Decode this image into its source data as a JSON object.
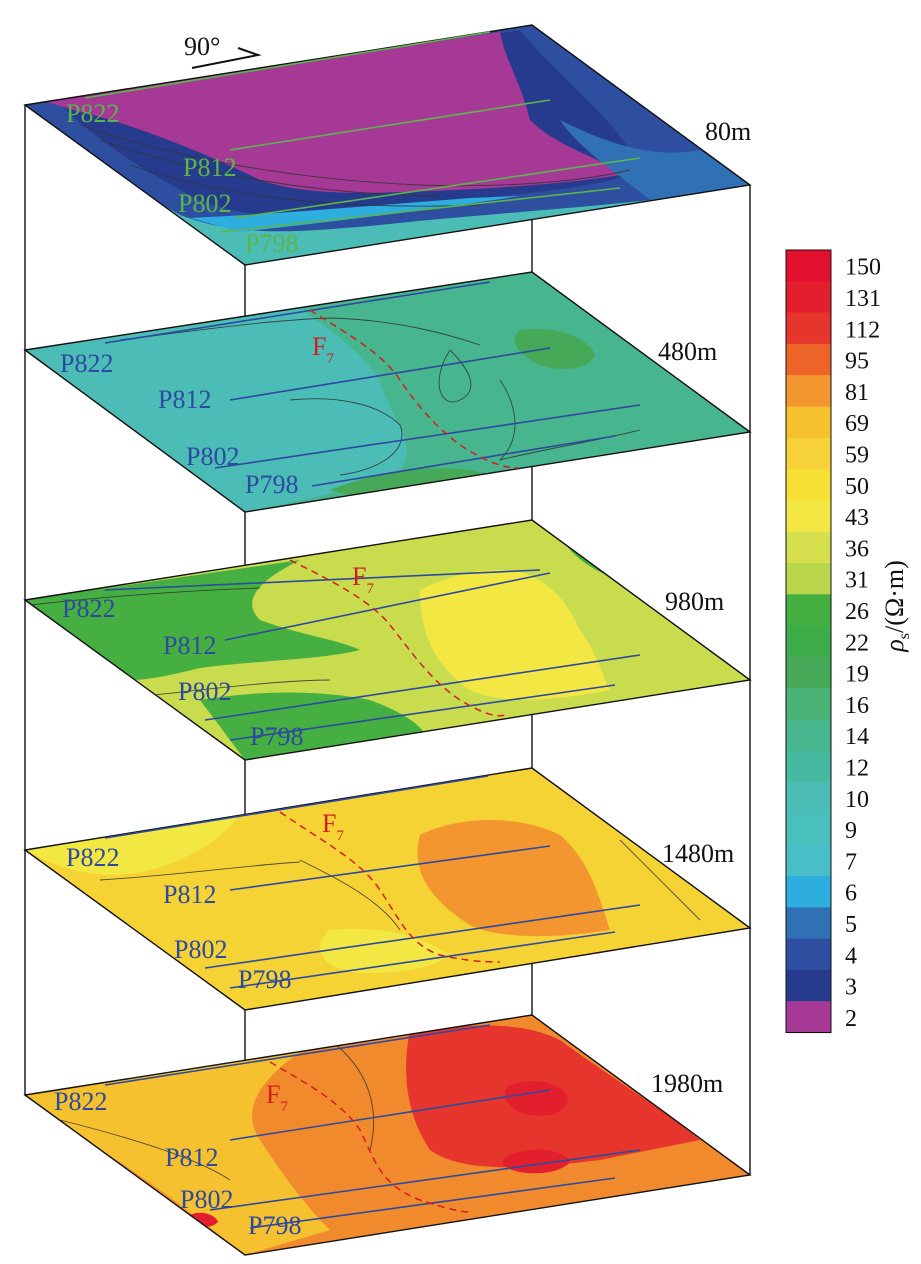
{
  "compass": {
    "label": "90°"
  },
  "layers": [
    {
      "id": "80m",
      "depth": "80m",
      "base_color": "#4bbcb6",
      "profile_color": "#5ab54a",
      "profiles": [
        "P822",
        "P812",
        "P802",
        "P798"
      ],
      "fault": null
    },
    {
      "id": "480m",
      "depth": "480m",
      "base_color": "#47b58e",
      "profile_color": "#2d4aa0",
      "profiles": [
        "P822",
        "P812",
        "P802",
        "P798"
      ],
      "fault": "F7"
    },
    {
      "id": "980m",
      "depth": "980m",
      "base_color": "#c9dc4e",
      "profile_color": "#2d4aa0",
      "profiles": [
        "P822",
        "P812",
        "P802",
        "P798"
      ],
      "fault": "F7"
    },
    {
      "id": "1480m",
      "depth": "1480m",
      "base_color": "#f6d335",
      "profile_color": "#2d4aa0",
      "profiles": [
        "P822",
        "P812",
        "P802",
        "P798"
      ],
      "fault": "F7"
    },
    {
      "id": "1980m",
      "depth": "1980m",
      "base_color": "#f08a2c",
      "profile_color": "#2d4aa0",
      "profiles": [
        "P822",
        "P812",
        "P802",
        "P798"
      ],
      "fault": "F7"
    }
  ],
  "fault": {
    "main": "F",
    "sub": "7",
    "color": "#d41e1e"
  },
  "colorbar": {
    "title_symbol": "ρ",
    "title_subscript": "s",
    "title_unit": "/(Ω·m)",
    "ticks": [
      "150",
      "131",
      "112",
      "95",
      "81",
      "69",
      "59",
      "50",
      "43",
      "36",
      "31",
      "26",
      "22",
      "19",
      "16",
      "14",
      "12",
      "10",
      "9",
      "7",
      "6",
      "5",
      "4",
      "3",
      "2"
    ],
    "colors": [
      "#e3102d",
      "#e31f2d",
      "#e5352c",
      "#ec6427",
      "#f3962f",
      "#f6c12f",
      "#f6d13a",
      "#f6e033",
      "#f3e843",
      "#d6e04f",
      "#bad64a",
      "#45b041",
      "#3fac4a",
      "#45a958",
      "#4ab274",
      "#47b58e",
      "#47b9a1",
      "#4bbcb6",
      "#4ac0bc",
      "#48bfc6",
      "#2eaedf",
      "#3071b6",
      "#2e4e9f",
      "#273b8e",
      "#a73996"
    ]
  }
}
